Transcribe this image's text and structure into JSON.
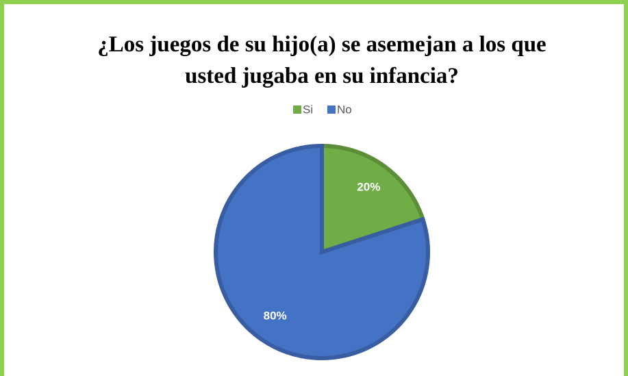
{
  "chart_data": {
    "type": "pie",
    "title": "¿Los juegos de su hijo(a) se asemejan a los que usted jugaba en su infancia?",
    "categories": [
      "Si",
      "No"
    ],
    "values": [
      20,
      80
    ],
    "value_labels": [
      "20%",
      "80%"
    ],
    "colors": [
      "#70ad47",
      "#4472c4"
    ],
    "legend": "top"
  }
}
